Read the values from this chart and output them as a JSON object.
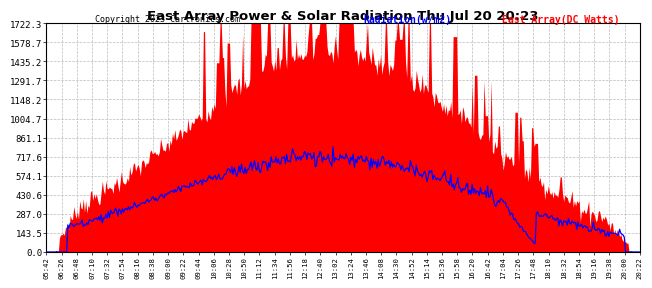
{
  "title": "East Array Power & Solar Radiation Thu Jul 20 20:23",
  "copyright": "Copyright 2023 Cartronics.com",
  "legend_radiation": "Radiation(w/m2)",
  "legend_east": "East Array(DC Watts)",
  "y_ticks": [
    0.0,
    143.5,
    287.0,
    430.6,
    574.1,
    717.6,
    861.1,
    1004.7,
    1148.2,
    1291.7,
    1435.2,
    1578.7,
    1722.3
  ],
  "y_max": 1722.3,
  "background_color": "#ffffff",
  "grid_color": "#bbbbbb",
  "fill_color": "#ff0000",
  "line_color_radiation": "#0000ff",
  "title_color": "#000000",
  "copyright_color": "#000000",
  "radiation_legend_color": "#0000ff",
  "east_legend_color": "#ff0000"
}
